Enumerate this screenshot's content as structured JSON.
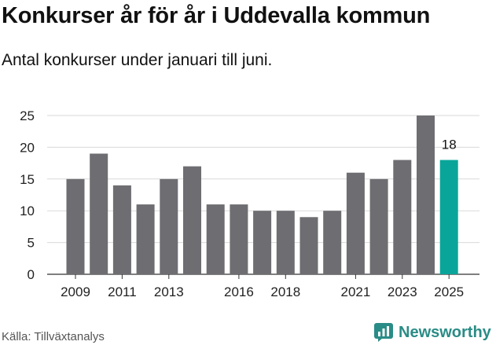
{
  "header": {
    "title": "Konkurser år för år i Uddevalla kommun",
    "subtitle": "Antal konkurser under januari till juni."
  },
  "footer": {
    "source": "Källa: Tillväxtanalys",
    "brand": "Newsworthy"
  },
  "colors": {
    "bar": "#6e6d72",
    "highlight": "#0aa59a",
    "grid": "#d9d9d9",
    "brand": "#2a8c86"
  },
  "chart_data": {
    "type": "bar",
    "categories": [
      "2009",
      "2010",
      "2011",
      "2012",
      "2013",
      "2014",
      "2015",
      "2016",
      "2017",
      "2018",
      "2019",
      "2020",
      "2021",
      "2022",
      "2023",
      "2024",
      "2025"
    ],
    "values": [
      15,
      19,
      14,
      11,
      15,
      17,
      11,
      11,
      10,
      10,
      9,
      10,
      16,
      15,
      18,
      25,
      18
    ],
    "tick_labels": [
      "2009",
      "2011",
      "2013",
      "2016",
      "2018",
      "2021",
      "2023",
      "2025"
    ],
    "y_ticks": [
      0,
      5,
      10,
      15,
      20,
      25
    ],
    "ylim": [
      0,
      25
    ],
    "highlight_category": "2025",
    "data_labels": [
      {
        "category": "2025",
        "text": "18"
      }
    ],
    "grid": true,
    "title": "Konkurser år för år i Uddevalla kommun",
    "xlabel": "",
    "ylabel": ""
  }
}
